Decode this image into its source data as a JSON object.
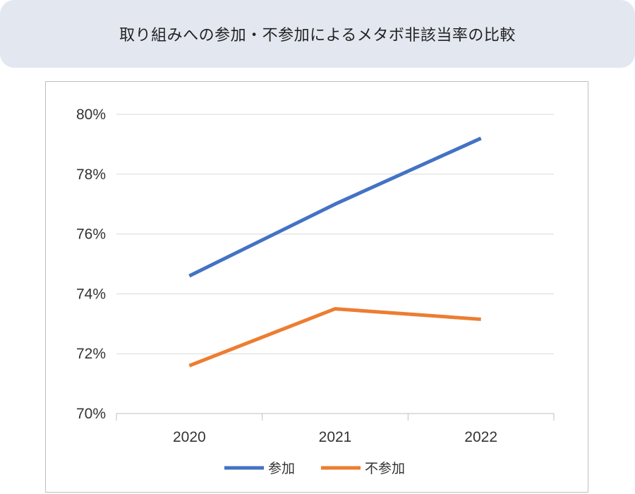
{
  "title": "取り組みへの参加・不参加によるメタボ非該当率の比較",
  "chart_data": {
    "type": "line",
    "title": "",
    "xlabel": "",
    "ylabel": "",
    "categories": [
      "2020",
      "2021",
      "2022"
    ],
    "y_ticks": [
      "70%",
      "72%",
      "74%",
      "76%",
      "78%",
      "80%"
    ],
    "ylim": [
      70,
      80
    ],
    "grid": true,
    "legend_position": "bottom",
    "series": [
      {
        "name": "参加",
        "color": "#4472c4",
        "values": [
          74.6,
          77.0,
          79.2
        ]
      },
      {
        "name": "不参加",
        "color": "#ed7d31",
        "values": [
          71.6,
          73.5,
          73.15
        ]
      }
    ]
  }
}
